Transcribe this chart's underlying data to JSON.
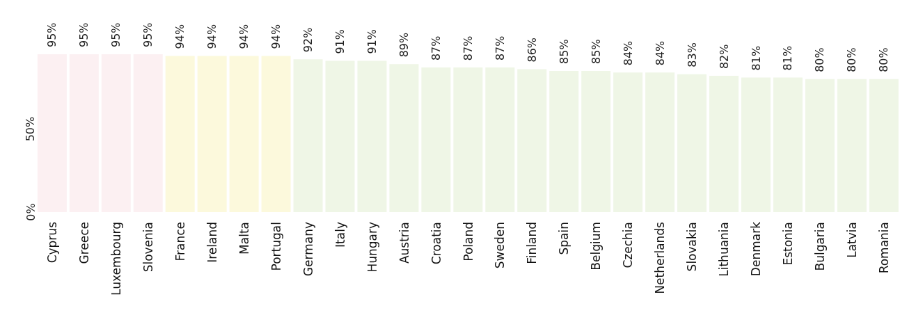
{
  "chart_data": {
    "type": "bar",
    "categories": [
      "Cyprus",
      "Greece",
      "Luxembourg",
      "Slovenia",
      "France",
      "Ireland",
      "Malta",
      "Portugal",
      "Germany",
      "Italy",
      "Hungary",
      "Austria",
      "Croatia",
      "Poland",
      "Sweden",
      "Finland",
      "Spain",
      "Belgium",
      "Czechia",
      "Netherlands",
      "Slovakia",
      "Lithuania",
      "Denmark",
      "Estonia",
      "Bulgaria",
      "Latvia",
      "Romania"
    ],
    "values": [
      95,
      95,
      95,
      95,
      94,
      94,
      94,
      94,
      92,
      91,
      91,
      89,
      87,
      87,
      87,
      86,
      85,
      85,
      84,
      84,
      83,
      82,
      81,
      81,
      80,
      80,
      80
    ],
    "value_labels": [
      "95%",
      "95%",
      "95%",
      "95%",
      "94%",
      "94%",
      "94%",
      "94%",
      "92%",
      "91%",
      "91%",
      "89%",
      "87%",
      "87%",
      "87%",
      "86%",
      "85%",
      "85%",
      "84%",
      "84%",
      "83%",
      "82%",
      "81%",
      "81%",
      "80%",
      "80%",
      "80%"
    ],
    "colors": [
      "#fcf0f2",
      "#fcf0f2",
      "#fcf0f2",
      "#fcf0f2",
      "#fcf9dc",
      "#fcf9dc",
      "#fcf9dc",
      "#fcf9dc",
      "#eff6e6",
      "#eff6e6",
      "#eff6e6",
      "#eff6e6",
      "#eff6e6",
      "#eff6e6",
      "#eff6e6",
      "#eff6e6",
      "#eff6e6",
      "#eff6e6",
      "#eff6e6",
      "#eff6e6",
      "#eff6e6",
      "#eff6e6",
      "#eff6e6",
      "#eff6e6",
      "#eff6e6",
      "#eff6e6",
      "#eff6e6"
    ],
    "ylim": [
      0,
      95
    ],
    "yticks": [
      {
        "value": 0,
        "label": "0%"
      },
      {
        "value": 50,
        "label": "50%"
      }
    ]
  }
}
